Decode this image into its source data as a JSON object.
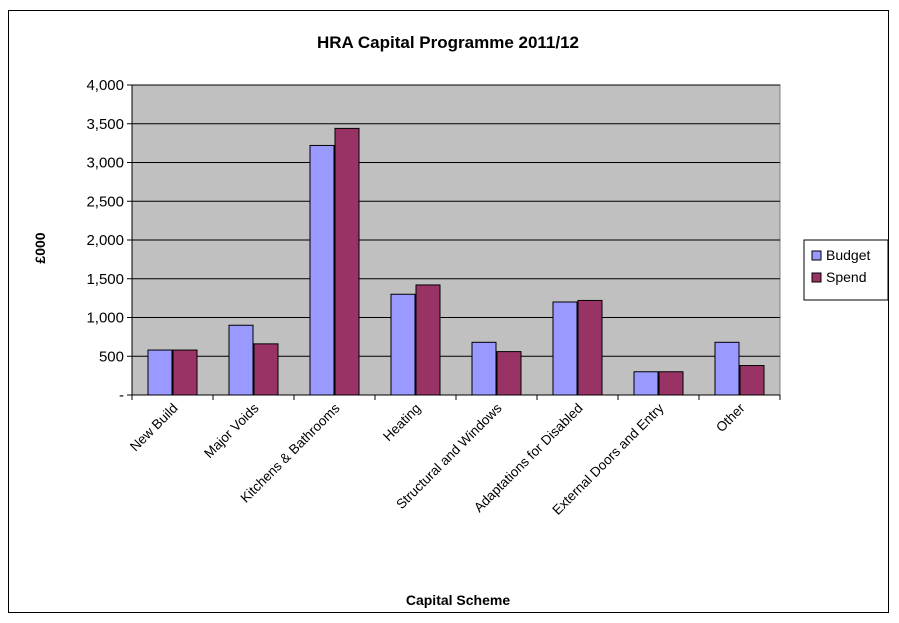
{
  "chart_data": {
    "type": "bar",
    "title": "HRA Capital Programme 2011/12",
    "xlabel": "Capital Scheme",
    "ylabel": "£000",
    "categories": [
      "New Build",
      "Major Voids",
      "Kitchens & Bathrooms",
      "Heating",
      "Structural and Windows",
      "Adaptations for Disabled",
      "External Doors and Entry",
      "Other"
    ],
    "series": [
      {
        "name": "Budget",
        "color": "#9999ff",
        "values": [
          580,
          900,
          3220,
          1300,
          680,
          1200,
          300,
          680
        ]
      },
      {
        "name": "Spend",
        "color": "#993366",
        "values": [
          580,
          660,
          3440,
          1420,
          560,
          1220,
          300,
          380
        ]
      }
    ],
    "ylim": [
      0,
      4000
    ],
    "yticks": [
      0,
      500,
      1000,
      1500,
      2000,
      2500,
      3000,
      3500,
      4000
    ],
    "ytick_labels": [
      "-",
      "500",
      "1,000",
      "1,500",
      "2,000",
      "2,500",
      "3,000",
      "3,500",
      "4,000"
    ],
    "plot_background": "#c0c0c0",
    "grid": true,
    "legend_position": "right"
  }
}
